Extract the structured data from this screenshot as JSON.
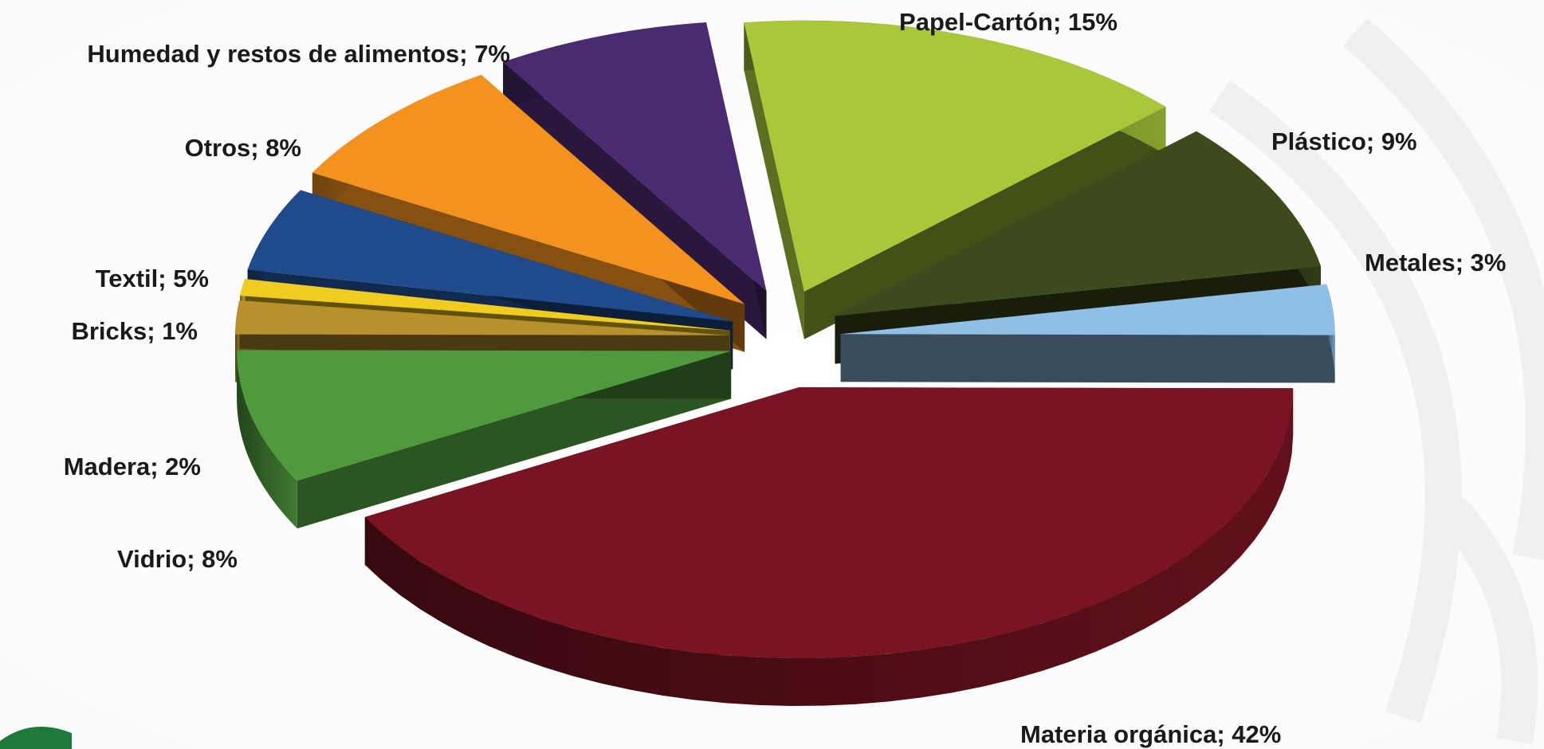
{
  "chart_data": {
    "type": "pie",
    "title": "",
    "slices": [
      {
        "label": "Papel-Cartón",
        "value": 15,
        "text": "Papel-Cartón; 15%",
        "color": "#a8c83a"
      },
      {
        "label": "Plástico",
        "value": 9,
        "text": "Plástico; 9%",
        "color": "#3c4a1c"
      },
      {
        "label": "Metales",
        "value": 3,
        "text": "Metales; 3%",
        "color": "#8fbfe6"
      },
      {
        "label": "Materia orgánica",
        "value": 42,
        "text": "Materia orgánica; 42%",
        "color": "#7a1422"
      },
      {
        "label": "Vidrio",
        "value": 8,
        "text": "Vidrio; 8%",
        "color": "#4f9a3c"
      },
      {
        "label": "Madera",
        "value": 2,
        "text": "Madera; 2%",
        "color": "#b8912c"
      },
      {
        "label": "Bricks",
        "value": 1,
        "text": "Bricks; 1%",
        "color": "#f0cc1e"
      },
      {
        "label": "Textil",
        "value": 5,
        "text": "Textil; 5%",
        "color": "#1f4a8c"
      },
      {
        "label": "Otros",
        "value": 8,
        "text": "Otros; 8%",
        "color": "#f4921e"
      },
      {
        "label": "Humedad y restos de alimentos",
        "value": 7,
        "text": "Humedad y restos de alimentos; 7%",
        "color": "#4a2a70"
      }
    ],
    "legend": "none",
    "style": "3d-exploded"
  }
}
